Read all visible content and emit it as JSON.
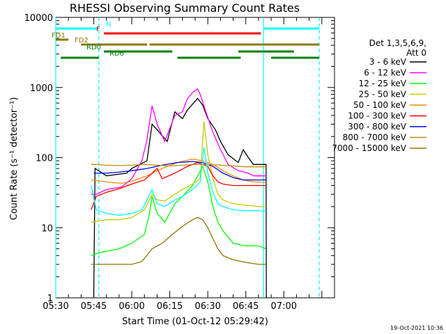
{
  "chart_data": {
    "type": "line",
    "title": "RHESSI Observing Summary Count Rates",
    "xlabel": "Start Time (01-Oct-12 05:29:42)",
    "ylabel": "Count Rate (s⁻¹ detector⁻¹)",
    "timestamp": "19-Oct-2021 10:36",
    "x_unit": "minutes",
    "xlim": [
      "05:30",
      "07:20"
    ],
    "ylim": [
      1,
      10000
    ],
    "y_scale": "log",
    "x_ticks": [
      {
        "label": "05:30",
        "minutes": 0
      },
      {
        "label": "05:45",
        "minutes": 15
      },
      {
        "label": "06:00",
        "minutes": 30
      },
      {
        "label": "06:15",
        "minutes": 45
      },
      {
        "label": "06:30",
        "minutes": 60
      },
      {
        "label": "06:45",
        "minutes": 75
      },
      {
        "label": "07:00",
        "minutes": 90
      }
    ],
    "y_ticks": [
      {
        "label": "1",
        "value": 1
      },
      {
        "label": "10",
        "value": 10
      },
      {
        "label": "100",
        "value": 100
      },
      {
        "label": "1000",
        "value": 1000
      },
      {
        "label": "10000",
        "value": 10000
      }
    ],
    "legend": {
      "header": [
        "Det 1,3,5,6,9,",
        "Att 0"
      ],
      "placement": "right"
    },
    "series": [
      {
        "name": "3 - 6 keV",
        "color": "#000000",
        "points": [
          [
            15,
            1
          ],
          [
            15.5,
            70
          ],
          [
            20,
            55
          ],
          [
            28,
            60
          ],
          [
            30,
            70
          ],
          [
            36,
            90
          ],
          [
            38,
            300
          ],
          [
            40,
            250
          ],
          [
            44,
            170
          ],
          [
            47,
            450
          ],
          [
            50,
            360
          ],
          [
            52,
            480
          ],
          [
            54,
            580
          ],
          [
            56,
            700
          ],
          [
            58,
            560
          ],
          [
            60,
            360
          ],
          [
            63,
            250
          ],
          [
            65,
            170
          ],
          [
            68,
            110
          ],
          [
            72,
            85
          ],
          [
            74,
            130
          ],
          [
            76,
            100
          ],
          [
            78,
            80
          ],
          [
            83,
            80
          ],
          [
            83.1,
            1
          ]
        ]
      },
      {
        "name": "6 - 12 keV",
        "color": "#ff00ff",
        "points": [
          [
            14,
            30
          ],
          [
            16,
            30
          ],
          [
            20,
            35
          ],
          [
            26,
            38
          ],
          [
            30,
            50
          ],
          [
            34,
            90
          ],
          [
            36,
            180
          ],
          [
            38,
            550
          ],
          [
            40,
            300
          ],
          [
            43,
            170
          ],
          [
            47,
            400
          ],
          [
            50,
            450
          ],
          [
            52,
            700
          ],
          [
            54,
            850
          ],
          [
            56,
            950
          ],
          [
            57,
            800
          ],
          [
            59,
            480
          ],
          [
            62,
            230
          ],
          [
            65,
            130
          ],
          [
            68,
            80
          ],
          [
            72,
            65
          ],
          [
            76,
            60
          ],
          [
            78,
            55
          ],
          [
            83,
            55
          ]
        ]
      },
      {
        "name": "12 - 25 keV",
        "color": "#00ff00",
        "points": [
          [
            14,
            4
          ],
          [
            18,
            4.5
          ],
          [
            25,
            5
          ],
          [
            30,
            6
          ],
          [
            35,
            8
          ],
          [
            37,
            16
          ],
          [
            38,
            28
          ],
          [
            40,
            16
          ],
          [
            43,
            12
          ],
          [
            47,
            22
          ],
          [
            50,
            28
          ],
          [
            54,
            40
          ],
          [
            56,
            55
          ],
          [
            58,
            75
          ],
          [
            60,
            45
          ],
          [
            62,
            20
          ],
          [
            64,
            12
          ],
          [
            66,
            9
          ],
          [
            70,
            6
          ],
          [
            75,
            5.5
          ],
          [
            80,
            5.5
          ],
          [
            83,
            5
          ]
        ]
      },
      {
        "name": "25 - 50 keV",
        "color": "#c8c800",
        "points": [
          [
            14,
            12
          ],
          [
            20,
            13
          ],
          [
            25,
            13
          ],
          [
            30,
            14
          ],
          [
            35,
            18
          ],
          [
            38,
            30
          ],
          [
            40,
            25
          ],
          [
            43,
            24
          ],
          [
            47,
            30
          ],
          [
            50,
            35
          ],
          [
            54,
            42
          ],
          [
            57,
            50
          ],
          [
            58.5,
            330
          ],
          [
            60,
            110
          ],
          [
            62,
            50
          ],
          [
            64,
            30
          ],
          [
            66,
            25
          ],
          [
            70,
            22
          ],
          [
            75,
            21
          ],
          [
            80,
            20
          ],
          [
            83,
            20
          ]
        ]
      },
      {
        "name": "50 - 100 keV",
        "color": "#ff8c00",
        "points": [
          [
            14,
            48
          ],
          [
            18,
            46
          ],
          [
            22,
            44
          ],
          [
            26,
            43
          ],
          [
            30,
            46
          ],
          [
            36,
            55
          ],
          [
            42,
            70
          ],
          [
            48,
            85
          ],
          [
            54,
            95
          ],
          [
            58,
            90
          ],
          [
            62,
            80
          ],
          [
            66,
            65
          ],
          [
            70,
            55
          ],
          [
            74,
            48
          ],
          [
            78,
            45
          ],
          [
            83,
            44
          ]
        ]
      },
      {
        "name": "100 - 300 keV",
        "color": "#ff0000",
        "points": [
          [
            14,
            18
          ],
          [
            16,
            28
          ],
          [
            20,
            32
          ],
          [
            25,
            36
          ],
          [
            30,
            42
          ],
          [
            35,
            48
          ],
          [
            38,
            60
          ],
          [
            40,
            70
          ],
          [
            42,
            50
          ],
          [
            47,
            60
          ],
          [
            52,
            75
          ],
          [
            56,
            85
          ],
          [
            58,
            80
          ],
          [
            60,
            75
          ],
          [
            62,
            55
          ],
          [
            64,
            45
          ],
          [
            66,
            42
          ],
          [
            70,
            40
          ],
          [
            75,
            40
          ],
          [
            80,
            40
          ],
          [
            83,
            40
          ]
        ]
      },
      {
        "name": "300 - 800 keV",
        "color": "#0000ff",
        "points": [
          [
            15,
            60
          ],
          [
            20,
            60
          ],
          [
            25,
            62
          ],
          [
            30,
            65
          ],
          [
            36,
            70
          ],
          [
            42,
            78
          ],
          [
            48,
            85
          ],
          [
            54,
            88
          ],
          [
            58,
            85
          ],
          [
            62,
            75
          ],
          [
            66,
            60
          ],
          [
            70,
            52
          ],
          [
            74,
            48
          ],
          [
            78,
            48
          ],
          [
            83,
            48
          ]
        ]
      },
      {
        "name": "800 - 7000 keV",
        "color": "#c88c00",
        "points": [
          [
            14,
            80
          ],
          [
            16,
            80
          ],
          [
            20,
            78
          ],
          [
            25,
            77
          ],
          [
            30,
            78
          ],
          [
            35,
            80
          ],
          [
            40,
            78
          ],
          [
            45,
            76
          ],
          [
            50,
            78
          ],
          [
            55,
            80
          ],
          [
            60,
            80
          ],
          [
            65,
            78
          ],
          [
            70,
            76
          ],
          [
            75,
            74
          ],
          [
            80,
            74
          ],
          [
            83,
            74
          ]
        ]
      },
      {
        "name": "7000 - 15000 keV",
        "color": "#8c7800",
        "points": [
          [
            14,
            3
          ],
          [
            18,
            3
          ],
          [
            24,
            3
          ],
          [
            30,
            3
          ],
          [
            34,
            3.3
          ],
          [
            38,
            5
          ],
          [
            42,
            6
          ],
          [
            46,
            8
          ],
          [
            50,
            10.5
          ],
          [
            54,
            13
          ],
          [
            56,
            14
          ],
          [
            58,
            13
          ],
          [
            60,
            10
          ],
          [
            62,
            7
          ],
          [
            64,
            5
          ],
          [
            66,
            4
          ],
          [
            70,
            3.5
          ],
          [
            75,
            3.2
          ],
          [
            80,
            3
          ],
          [
            83,
            3
          ]
        ]
      },
      {
        "name": "",
        "color": "#00ffff",
        "style": "light-blue",
        "points": [
          [
            14,
            40
          ],
          [
            16,
            18
          ],
          [
            20,
            16
          ],
          [
            25,
            15
          ],
          [
            30,
            16
          ],
          [
            34,
            18
          ],
          [
            38,
            35
          ],
          [
            40,
            22
          ],
          [
            43,
            20
          ],
          [
            47,
            25
          ],
          [
            50,
            28
          ],
          [
            54,
            35
          ],
          [
            57,
            45
          ],
          [
            58.5,
            140
          ],
          [
            60,
            60
          ],
          [
            62,
            32
          ],
          [
            64,
            22
          ],
          [
            66,
            20
          ],
          [
            70,
            18
          ],
          [
            75,
            17.5
          ],
          [
            80,
            17.5
          ],
          [
            83,
            17
          ]
        ]
      }
    ],
    "flags": [
      {
        "label": "N",
        "color": "#00ffff",
        "segments": [
          [
            0,
            17
          ],
          [
            82,
            104
          ]
        ]
      },
      {
        "label": "F",
        "color": "#ff0000",
        "segments": [
          [
            19,
            81
          ]
        ]
      },
      {
        "label": "FD1",
        "color": "#8c7800",
        "segments": [
          [
            0,
            5
          ]
        ]
      },
      {
        "label": "FD2",
        "color": "#8c7800",
        "segments": [
          [
            10,
            36
          ],
          [
            37,
            104
          ]
        ]
      },
      {
        "label": "RD0",
        "color": "#008000",
        "segments": [
          [
            19,
            46
          ],
          [
            72,
            94
          ]
        ]
      },
      {
        "label": "RD6",
        "color": "#008000",
        "segments": [
          [
            2,
            17
          ],
          [
            48,
            73
          ],
          [
            85,
            104
          ]
        ]
      }
    ],
    "vertical_lines": [
      {
        "minutes": 0,
        "color": "#00ffff",
        "dashed": false
      },
      {
        "minutes": 17,
        "color": "#00ffff",
        "dashed": true
      },
      {
        "minutes": 82,
        "color": "#00ffff",
        "dashed": false
      },
      {
        "minutes": 104,
        "color": "#00ffff",
        "dashed": true
      }
    ]
  }
}
